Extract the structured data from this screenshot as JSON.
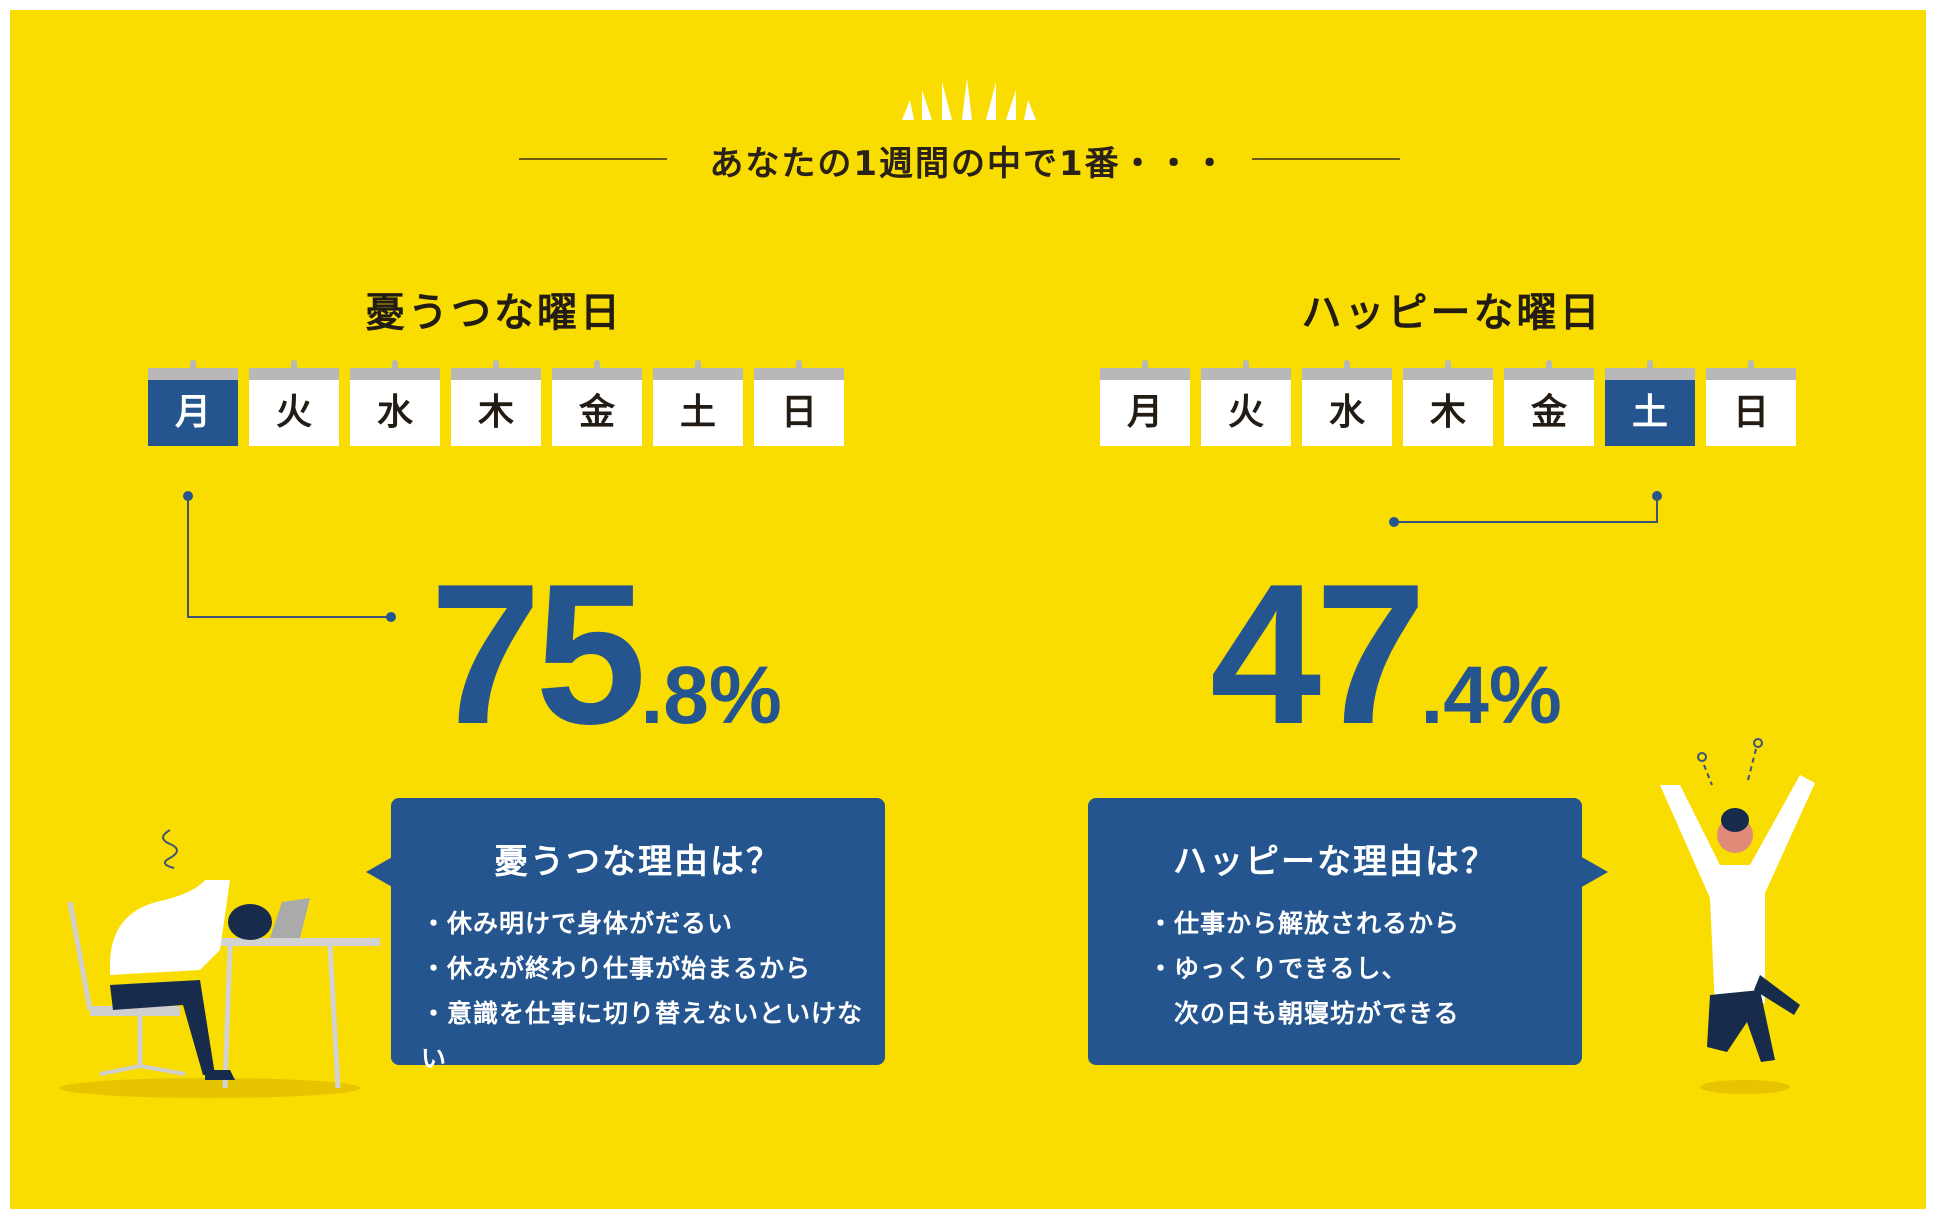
{
  "header": {
    "title": "あなたの1週間の中で1番・・・",
    "icon": "sunburst-icon"
  },
  "colors": {
    "background": "#f9dc00",
    "accent": "#25558f",
    "text": "#231c14"
  },
  "left": {
    "title": "憂うつな曜日",
    "days": [
      "月",
      "火",
      "水",
      "木",
      "金",
      "土",
      "日"
    ],
    "selected_day": "月",
    "percent_int": "75",
    "percent_dec": ".8%",
    "reason_title": "憂うつな理由は？",
    "reasons": [
      "・休み明けで身体がだるい",
      "・休みが終わり仕事が始まるから",
      "・意識を仕事に切り替えないといけない"
    ]
  },
  "right": {
    "title": "ハッピーな曜日",
    "days": [
      "月",
      "火",
      "水",
      "木",
      "金",
      "土",
      "日"
    ],
    "selected_day": "土",
    "percent_int": "47",
    "percent_dec": ".4%",
    "reason_title": "ハッピーな理由は？",
    "reasons": [
      "・仕事から解放されるから",
      "・ゆっくりできるし、",
      "　次の日も朝寝坊ができる"
    ]
  }
}
